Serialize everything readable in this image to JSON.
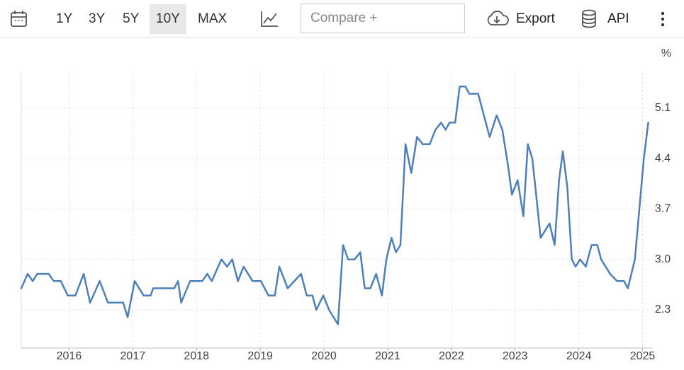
{
  "toolbar": {
    "ranges": [
      "1Y",
      "3Y",
      "5Y",
      "10Y",
      "MAX"
    ],
    "active_range": "10Y",
    "compare_placeholder": "Compare +",
    "export": "Export",
    "api": "API"
  },
  "chart_data": {
    "type": "line",
    "unit": "%",
    "x": [
      2015.25,
      2015.35,
      2015.43,
      2015.5,
      2015.68,
      2015.76,
      2015.87,
      2015.98,
      2016.1,
      2016.23,
      2016.33,
      2016.48,
      2016.61,
      2016.85,
      2016.92,
      2017.03,
      2017.17,
      2017.28,
      2017.32,
      2017.65,
      2017.71,
      2017.76,
      2017.9,
      2018.09,
      2018.17,
      2018.24,
      2018.39,
      2018.48,
      2018.56,
      2018.65,
      2018.74,
      2018.88,
      2019.01,
      2019.13,
      2019.23,
      2019.3,
      2019.43,
      2019.64,
      2019.73,
      2019.82,
      2019.88,
      2019.99,
      2020.08,
      2020.22,
      2020.3,
      2020.38,
      2020.48,
      2020.57,
      2020.64,
      2020.73,
      2020.82,
      2020.91,
      2020.98,
      2021.06,
      2021.13,
      2021.2,
      2021.28,
      2021.37,
      2021.46,
      2021.55,
      2021.66,
      2021.75,
      2021.84,
      2021.91,
      2021.97,
      2022.06,
      2022.13,
      2022.22,
      2022.28,
      2022.42,
      2022.51,
      2022.6,
      2022.71,
      2022.8,
      2022.89,
      2022.95,
      2023.04,
      2023.13,
      2023.2,
      2023.27,
      2023.33,
      2023.4,
      2023.54,
      2023.62,
      2023.69,
      2023.75,
      2023.82,
      2023.89,
      2023.95,
      2024.02,
      2024.11,
      2024.2,
      2024.29,
      2024.35,
      2024.49,
      2024.6,
      2024.71,
      2024.77,
      2024.88,
      2024.95,
      2025.02,
      2025.09
    ],
    "series": [
      {
        "color": "#4f7fb8",
        "values": [
          2.6,
          2.8,
          2.7,
          2.8,
          2.8,
          2.7,
          2.7,
          2.5,
          2.5,
          2.8,
          2.4,
          2.7,
          2.4,
          2.4,
          2.2,
          2.7,
          2.5,
          2.5,
          2.6,
          2.6,
          2.7,
          2.4,
          2.7,
          2.7,
          2.8,
          2.7,
          3.0,
          2.9,
          3.0,
          2.7,
          2.9,
          2.7,
          2.7,
          2.5,
          2.5,
          2.9,
          2.6,
          2.8,
          2.5,
          2.5,
          2.3,
          2.5,
          2.3,
          2.1,
          3.2,
          3.0,
          3.0,
          3.1,
          2.6,
          2.6,
          2.8,
          2.5,
          3.0,
          3.3,
          3.1,
          3.2,
          4.6,
          4.2,
          4.7,
          4.6,
          4.6,
          4.8,
          4.9,
          4.8,
          4.9,
          4.9,
          5.4,
          5.4,
          5.3,
          5.3,
          5.0,
          4.7,
          5.0,
          4.8,
          4.3,
          3.9,
          4.1,
          3.6,
          4.6,
          4.4,
          3.9,
          3.3,
          3.5,
          3.2,
          4.1,
          4.5,
          4.0,
          3.0,
          2.9,
          3.0,
          2.9,
          3.2,
          3.2,
          3.0,
          2.8,
          2.7,
          2.7,
          2.6,
          3.0,
          3.7,
          4.4,
          4.9
        ]
      }
    ],
    "xlim": [
      2015.25,
      2025.15
    ],
    "xticks": [
      2016,
      2017,
      2018,
      2019,
      2020,
      2021,
      2022,
      2023,
      2024,
      2025
    ],
    "ylim": [
      1.77,
      5.59
    ],
    "yticks": [
      2.3,
      {
        "value": 3,
        "label": "3.0"
      },
      3.7,
      4.4,
      5.1
    ],
    "grid": true
  }
}
